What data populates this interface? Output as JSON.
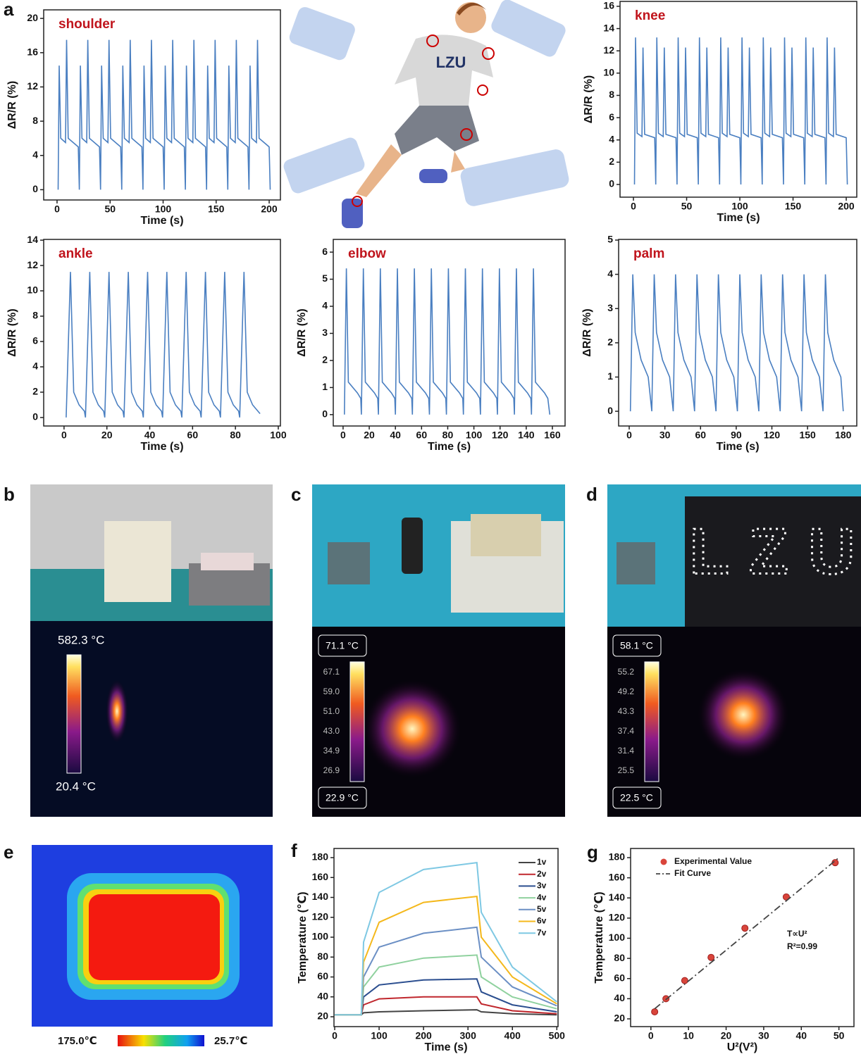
{
  "panel_labels": [
    "a",
    "b",
    "c",
    "d",
    "e",
    "f",
    "g"
  ],
  "shirt_text": "LZU",
  "photo_b": {
    "max": "582.3 °C",
    "min": "20.4 °C"
  },
  "photo_c": {
    "max": "71.1 °C",
    "scale": [
      "67.1",
      "59.0",
      "51.0",
      "43.0",
      "34.9",
      "26.9"
    ],
    "min": "22.9 °C"
  },
  "photo_d": {
    "sign": "LZU",
    "max": "58.1 °C",
    "scale": [
      "55.2",
      "49.2",
      "43.3",
      "37.4",
      "31.4",
      "25.5"
    ],
    "min": "22.5 °C"
  },
  "photo_e": {
    "max": "175.0℃",
    "min": "25.7℃"
  },
  "chart_data": [
    {
      "type": "line",
      "label": "shoulder",
      "x_label": "Time (s)",
      "y_label": "ΔR/R (%)",
      "color": "#4a7fc1",
      "x": [
        1,
        2,
        3.5,
        8,
        9,
        10.5,
        20,
        21,
        22,
        23.5,
        28,
        29,
        30.5,
        40,
        41,
        42,
        43.5,
        48,
        49,
        50.5,
        60,
        61,
        62,
        63.5,
        68,
        69,
        70.5,
        80,
        81,
        82,
        83.5,
        88,
        89,
        90.5,
        100,
        101,
        102,
        103.5,
        108,
        109,
        110.5,
        120,
        121,
        122,
        123.5,
        128,
        129,
        130.5,
        140,
        141,
        142,
        143.5,
        148,
        149,
        150.5,
        160,
        161,
        162,
        163.5,
        168,
        169,
        170.5,
        180,
        181,
        182,
        183.5,
        188,
        189,
        190.5,
        200,
        201
      ],
      "values": [
        0,
        14.5,
        6,
        5.5,
        17.5,
        6,
        5,
        0,
        14.5,
        6,
        5.5,
        17.5,
        6,
        5,
        0,
        14.5,
        6,
        5.5,
        17.5,
        6,
        5,
        0,
        14.5,
        6,
        5.5,
        17.5,
        6,
        5,
        0,
        14.5,
        6,
        5.5,
        17.5,
        6,
        5,
        0,
        14.5,
        6,
        5.5,
        17.5,
        6,
        5,
        0,
        14.5,
        6,
        5.5,
        17.5,
        6,
        5,
        0,
        14.5,
        6,
        5.5,
        17.5,
        6,
        5,
        0,
        14.5,
        6,
        5.5,
        17.5,
        6,
        5,
        0,
        14.5,
        6,
        5.5,
        17.5,
        6,
        5,
        0
      ],
      "xlim": [
        -12.6,
        210.6
      ],
      "ylim": [
        -1.2,
        21
      ],
      "xticks": [
        0,
        50,
        100,
        150,
        200
      ],
      "yticks": [
        0,
        4,
        8,
        12,
        16,
        20
      ]
    },
    {
      "type": "line",
      "label": "knee",
      "x_label": "Time (s)",
      "y_label": "ΔR/R (%)",
      "color": "#4a7fc1",
      "x": [
        1,
        2,
        3.5,
        8,
        9,
        10.5,
        20,
        21,
        22,
        23.5,
        28,
        29,
        30.5,
        40,
        41,
        42,
        43.5,
        48,
        49,
        50.5,
        60,
        61,
        62,
        63.5,
        68,
        69,
        70.5,
        80,
        81,
        82,
        83.5,
        88,
        89,
        90.5,
        100,
        101,
        102,
        103.5,
        108,
        109,
        110.5,
        120,
        121,
        122,
        123.5,
        128,
        129,
        130.5,
        140,
        141,
        142,
        143.5,
        148,
        149,
        150.5,
        160,
        161,
        162,
        163.5,
        168,
        169,
        170.5,
        180,
        181,
        182,
        183.5,
        188,
        189,
        190.5,
        200,
        201
      ],
      "values": [
        0,
        13.2,
        4.6,
        4.3,
        12.3,
        4.5,
        4.2,
        0,
        13.2,
        4.6,
        4.3,
        12.3,
        4.5,
        4.2,
        0,
        13.2,
        4.6,
        4.3,
        12.3,
        4.5,
        4.2,
        0,
        13.2,
        4.6,
        4.3,
        12.3,
        4.5,
        4.2,
        0,
        13.2,
        4.6,
        4.3,
        12.3,
        4.5,
        4.2,
        0,
        13.2,
        4.6,
        4.3,
        12.3,
        4.5,
        4.2,
        0,
        13.2,
        4.6,
        4.3,
        12.3,
        4.5,
        4.2,
        0,
        13.2,
        4.6,
        4.3,
        12.3,
        4.5,
        4.2,
        0,
        13.2,
        4.6,
        4.3,
        12.3,
        4.5,
        4.2,
        0,
        13.2,
        4.6,
        4.3,
        12.3,
        4.5,
        4.2,
        0
      ],
      "xlim": [
        -12.6,
        209.9
      ],
      "ylim": [
        -1.14,
        16.44
      ],
      "xticks": [
        0,
        50,
        100,
        150,
        200
      ],
      "yticks": [
        0,
        2,
        4,
        6,
        8,
        10,
        12,
        14,
        16
      ]
    },
    {
      "type": "line",
      "label": "ankle",
      "x_label": "Time (s)",
      "y_label": "ΔR/R (%)",
      "color": "#4a7fc1",
      "x": [
        1,
        3,
        4.5,
        7,
        9.5,
        10,
        12,
        13.5,
        16,
        18.5,
        19,
        21,
        22.5,
        25,
        27.5,
        28,
        30,
        31.5,
        34,
        36.5,
        37,
        39,
        40.5,
        43,
        45.5,
        46,
        48,
        49.5,
        52,
        54.5,
        55,
        57,
        58.5,
        61,
        63.5,
        64,
        66,
        67.5,
        70,
        72.5,
        73,
        75,
        76.5,
        79,
        81.5,
        82,
        84,
        85.5,
        88,
        90.5,
        91.5
      ],
      "values": [
        0,
        11.5,
        2,
        1,
        0.5,
        0,
        11.5,
        2,
        1,
        0.5,
        0,
        11.5,
        2,
        1,
        0.5,
        0,
        11.5,
        2,
        1,
        0.5,
        0,
        11.5,
        2,
        1,
        0.5,
        0,
        11.5,
        2,
        1,
        0.5,
        0,
        11.5,
        2,
        1,
        0.5,
        0,
        11.5,
        2,
        1,
        0.5,
        0,
        11.5,
        2,
        1,
        0.5,
        0,
        11.5,
        2,
        1,
        0.5,
        0.3
      ],
      "xlim": [
        -9.5,
        101
      ],
      "ylim": [
        -0.67,
        14.06
      ],
      "xticks": [
        0,
        20,
        40,
        60,
        80,
        100
      ],
      "yticks": [
        0,
        2,
        4,
        6,
        8,
        10,
        12,
        14
      ]
    },
    {
      "type": "line",
      "label": "elbow",
      "x_label": "Time (s)",
      "y_label": "ΔR/R (%)",
      "color": "#4a7fc1",
      "x": [
        1,
        2.5,
        4,
        11,
        13.5,
        14,
        15.5,
        17,
        24,
        26.5,
        27,
        28.5,
        30,
        37,
        39.5,
        40,
        41.5,
        43,
        50,
        52.5,
        53,
        54.5,
        56,
        63,
        65.5,
        66,
        67.5,
        69,
        76,
        78.5,
        79,
        80.5,
        82,
        89,
        91.5,
        92,
        93.5,
        95,
        102,
        104.5,
        105,
        106.5,
        108,
        115,
        117.5,
        118,
        119.5,
        121,
        128,
        130.5,
        131,
        132.5,
        134,
        141,
        143.5,
        144,
        145.5,
        147,
        154,
        156.5,
        158
      ],
      "values": [
        0,
        5.4,
        1.2,
        0.8,
        0.6,
        0,
        5.4,
        1.2,
        0.8,
        0.6,
        0,
        5.4,
        1.2,
        0.8,
        0.6,
        0,
        5.4,
        1.2,
        0.8,
        0.6,
        0,
        5.4,
        1.2,
        0.8,
        0.6,
        0,
        5.4,
        1.2,
        0.8,
        0.6,
        0,
        5.4,
        1.2,
        0.8,
        0.6,
        0,
        5.4,
        1.2,
        0.8,
        0.6,
        0,
        5.4,
        1.2,
        0.8,
        0.6,
        0,
        5.4,
        1.2,
        0.8,
        0.6,
        0,
        5.4,
        1.2,
        0.8,
        0.6,
        0,
        5.4,
        1.2,
        0.8,
        0.6,
        0
      ],
      "xlim": [
        -7.5,
        169.7
      ],
      "ylim": [
        -0.42,
        6.47
      ],
      "xticks": [
        0,
        20,
        40,
        60,
        80,
        100,
        120,
        140,
        160
      ],
      "yticks": [
        0,
        1,
        2,
        3,
        4,
        5,
        6
      ]
    },
    {
      "type": "line",
      "label": "palm",
      "x_label": "Time (s)",
      "y_label": "ΔR/R (%)",
      "color": "#4a7fc1",
      "x": [
        1,
        3,
        5,
        10,
        16,
        19,
        21,
        23,
        28,
        34,
        37,
        39,
        41,
        46,
        52,
        55,
        57,
        59,
        64,
        70,
        73,
        75,
        77,
        82,
        88,
        91,
        93,
        95,
        100,
        106,
        109,
        111,
        113,
        118,
        124,
        127,
        129,
        131,
        136,
        142,
        145,
        147,
        149,
        154,
        160,
        163,
        165,
        167,
        172,
        178,
        180
      ],
      "values": [
        0,
        4,
        2.3,
        1.5,
        1,
        0,
        4,
        2.3,
        1.5,
        1,
        0,
        4,
        2.3,
        1.5,
        1,
        0,
        4,
        2.3,
        1.5,
        1,
        0,
        4,
        2.3,
        1.5,
        1,
        0,
        4,
        2.3,
        1.5,
        1,
        0,
        4,
        2.3,
        1.5,
        1,
        0,
        4,
        2.3,
        1.5,
        1,
        0,
        4,
        2.3,
        1.5,
        1,
        0,
        4,
        2.3,
        1.5,
        1,
        0
      ],
      "xlim": [
        -8.9,
        191.4
      ],
      "ylim": [
        -0.43,
        5.02
      ],
      "xticks": [
        0,
        30,
        60,
        90,
        120,
        150,
        180
      ],
      "yticks": [
        0,
        1,
        2,
        3,
        4,
        5
      ]
    },
    {
      "type": "multiline",
      "x_label": "Time (s)",
      "y_label": "Temperature (℃)",
      "x": [
        0,
        60,
        65,
        100,
        200,
        320,
        330,
        400,
        500
      ],
      "series": [
        {
          "name": "1v",
          "color": "#444444",
          "values": [
            22,
            22,
            24,
            25,
            26,
            27,
            25,
            23,
            22
          ]
        },
        {
          "name": "2v",
          "color": "#c0272d",
          "values": [
            22,
            22,
            32,
            38,
            40,
            40,
            33,
            26,
            23
          ]
        },
        {
          "name": "3v",
          "color": "#2b4e8f",
          "values": [
            22,
            22,
            40,
            52,
            57,
            58,
            45,
            32,
            25
          ]
        },
        {
          "name": "4v",
          "color": "#8fd19e",
          "values": [
            22,
            22,
            50,
            70,
            79,
            82,
            60,
            40,
            28
          ]
        },
        {
          "name": "5v",
          "color": "#6b8fc4",
          "values": [
            22,
            22,
            60,
            90,
            104,
            110,
            80,
            50,
            31
          ]
        },
        {
          "name": "6v",
          "color": "#f4b81c",
          "values": [
            22,
            22,
            75,
            115,
            135,
            141,
            100,
            60,
            33
          ]
        },
        {
          "name": "7v",
          "color": "#7ec8e3",
          "values": [
            22,
            22,
            95,
            145,
            168,
            175,
            125,
            70,
            35
          ]
        }
      ],
      "xlim": [
        -1.6,
        502.7
      ],
      "ylim": [
        10.1,
        189.2
      ],
      "xticks": [
        0,
        100,
        200,
        300,
        400,
        500
      ],
      "yticks": [
        20,
        40,
        60,
        80,
        100,
        120,
        140,
        160,
        180
      ]
    },
    {
      "type": "scatter",
      "x_label": "U²(V²)",
      "y_label": "Temperature (℃)",
      "annotations": [
        "T∝U²",
        "R²=0.99"
      ],
      "series": [
        {
          "name": "Experimental Value",
          "mode": "markers",
          "color": "#d9453b",
          "x": [
            1,
            4,
            9,
            16,
            25,
            36,
            49
          ],
          "values": [
            27,
            40,
            58,
            81,
            110,
            141,
            175
          ]
        },
        {
          "name": "Fit Curve",
          "mode": "dash-dot",
          "color": "#444444",
          "x": [
            1,
            50
          ],
          "values": [
            30,
            180
          ]
        }
      ],
      "xlim": [
        -5.4,
        54
      ],
      "ylim": [
        12.3,
        189.1
      ],
      "xticks": [
        0,
        10,
        20,
        30,
        40,
        50
      ],
      "yticks": [
        20,
        40,
        60,
        80,
        100,
        120,
        140,
        160,
        180
      ]
    }
  ]
}
